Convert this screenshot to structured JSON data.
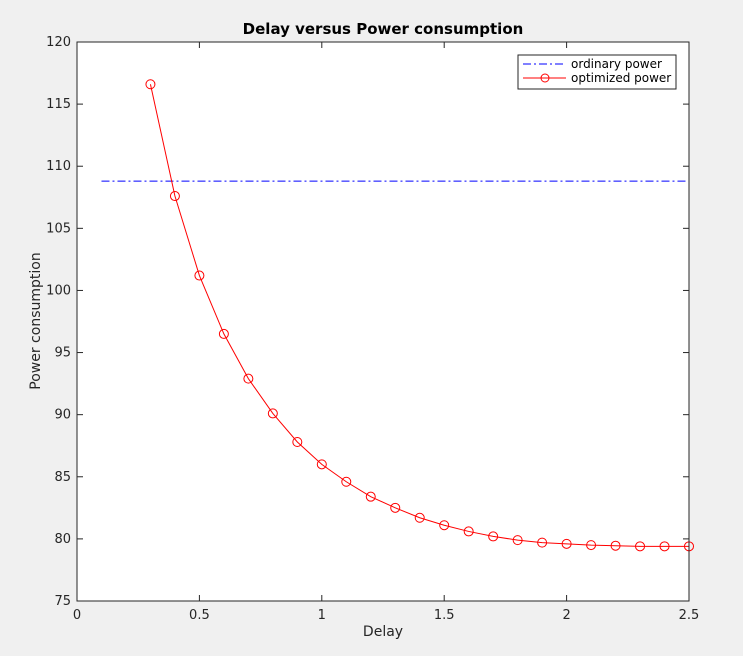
{
  "chart_data": {
    "type": "line",
    "title": "Delay versus Power consumption",
    "xlabel": "Delay",
    "ylabel": "Power consumption",
    "xlim": [
      0,
      2.5
    ],
    "ylim": [
      75,
      120
    ],
    "x_ticks": [
      "0",
      "0.5",
      "1",
      "1.5",
      "2",
      "2.5"
    ],
    "y_ticks": [
      "75",
      "80",
      "85",
      "90",
      "95",
      "100",
      "105",
      "110",
      "115",
      "120"
    ],
    "grid": false,
    "legend_position": "top-right",
    "series": [
      {
        "name": "ordinary power",
        "style": "dash-dot",
        "color": "#0000ff",
        "marker": "none",
        "x": [
          0.1,
          2.5
        ],
        "y": [
          108.8,
          108.8
        ]
      },
      {
        "name": "optimized power",
        "style": "solid",
        "color": "#ff0000",
        "marker": "circle",
        "x": [
          0.3,
          0.4,
          0.5,
          0.6,
          0.7,
          0.8,
          0.9,
          1.0,
          1.1,
          1.2,
          1.3,
          1.4,
          1.5,
          1.6,
          1.7,
          1.8,
          1.9,
          2.0,
          2.1,
          2.2,
          2.3,
          2.4,
          2.5
        ],
        "y": [
          116.6,
          107.6,
          101.2,
          96.5,
          92.9,
          90.1,
          87.8,
          86.0,
          84.6,
          83.4,
          82.5,
          81.7,
          81.1,
          80.6,
          80.2,
          79.9,
          79.7,
          79.6,
          79.5,
          79.45,
          79.4,
          79.4,
          79.4
        ]
      }
    ]
  }
}
